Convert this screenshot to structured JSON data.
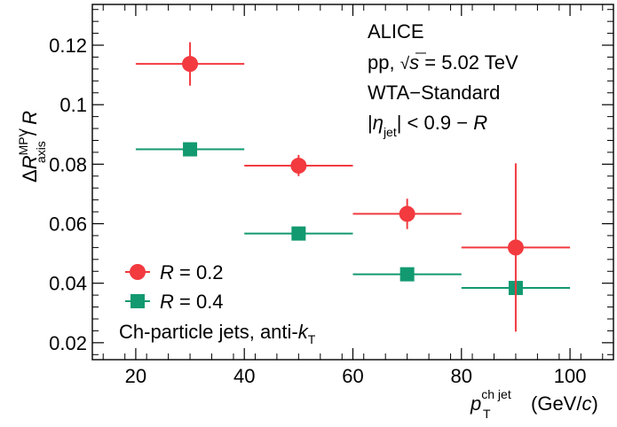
{
  "chart_data": {
    "type": "scatter",
    "xlim": [
      12,
      108
    ],
    "ylim": [
      0.0143,
      0.1337
    ],
    "x_ticks": [
      20,
      40,
      60,
      80,
      100
    ],
    "y_ticks": [
      0.02,
      0.04,
      0.06,
      0.08,
      0.1,
      0.12
    ],
    "x_tick_labels": [
      "20",
      "40",
      "60",
      "80",
      "100"
    ],
    "y_tick_labels": [
      "0.02",
      "0.04",
      "0.06",
      "0.08",
      "0.1",
      "0.12"
    ],
    "xlabel": {
      "main": "p",
      "sub": "T",
      "sup": "ch jet",
      "unit_open": "(GeV/",
      "unit_var": "c",
      "unit_close": ")"
    },
    "ylabel": {
      "delta": "Δ",
      "main": "R",
      "sub": "axis",
      "sup": "MPV",
      "tail_sep": " / ",
      "tail_var": "R"
    },
    "grid": false,
    "legend_position": "bottom-left",
    "series": [
      {
        "name": "R = 0.2",
        "legend_var": "R",
        "legend_rest": " = 0.2",
        "color": "#f23a3f",
        "marker": "circle",
        "points": [
          {
            "x": 30,
            "xlo": 20,
            "xhi": 40,
            "y": 0.1137,
            "ylo": 0.1064,
            "yhi": 0.121
          },
          {
            "x": 50,
            "xlo": 40,
            "xhi": 60,
            "y": 0.0795,
            "ylo": 0.076,
            "yhi": 0.0831
          },
          {
            "x": 70,
            "xlo": 60,
            "xhi": 80,
            "y": 0.0633,
            "ylo": 0.0582,
            "yhi": 0.0684
          },
          {
            "x": 90,
            "xlo": 80,
            "xhi": 100,
            "y": 0.052,
            "ylo": 0.0237,
            "yhi": 0.0803
          }
        ]
      },
      {
        "name": "R = 0.4",
        "legend_var": "R",
        "legend_rest": " = 0.4",
        "color": "#129970",
        "marker": "square",
        "points": [
          {
            "x": 30,
            "xlo": 20,
            "xhi": 40,
            "y": 0.085
          },
          {
            "x": 50,
            "xlo": 40,
            "xhi": 60,
            "y": 0.0567
          },
          {
            "x": 70,
            "xlo": 60,
            "xhi": 80,
            "y": 0.043
          },
          {
            "x": 90,
            "xlo": 80,
            "xhi": 100,
            "y": 0.0384
          }
        ]
      }
    ],
    "annotations": {
      "experiment": "ALICE",
      "system_pre": "pp, ",
      "system_var": "s",
      "system_post": " = 5.02 TeV",
      "method": "WTA−Standard",
      "eta_open": "|",
      "eta_var": "η",
      "eta_sub": "jet",
      "eta_mid": "| < 0.9 − ",
      "eta_var2": "R",
      "jets_pre": "Ch-particle jets, anti-",
      "jets_var": "k",
      "jets_sub": "T"
    }
  }
}
